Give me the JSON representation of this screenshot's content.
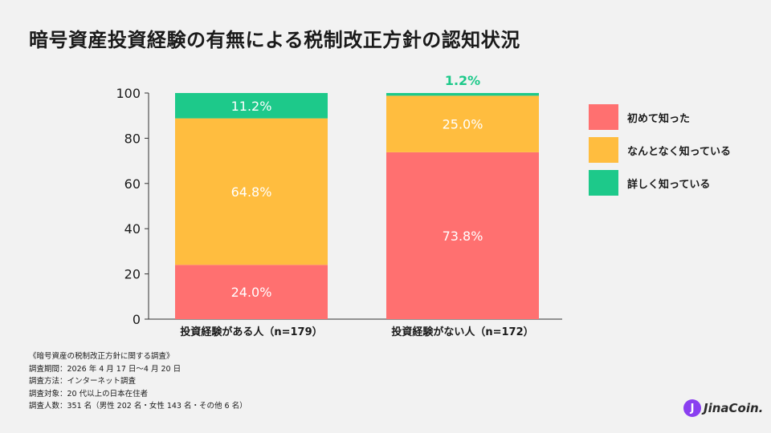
{
  "title": "暗号資産投資経験の有無による税制改正方針の認知状況",
  "chart_data": {
    "type": "bar",
    "stacked": true,
    "categories": [
      "投資経験がある人（n=179）",
      "投資経験がない人（n=172）"
    ],
    "series": [
      {
        "name": "初めて知った",
        "values": [
          24.0,
          73.8
        ],
        "labels": [
          "24.0%",
          "73.8%"
        ],
        "color": "#ff7070"
      },
      {
        "name": "なんとなく知っている",
        "values": [
          64.8,
          25.0
        ],
        "labels": [
          "64.8%",
          "25.0%"
        ],
        "color": "#ffbd3f"
      },
      {
        "name": "詳しく知っている",
        "values": [
          11.2,
          1.2
        ],
        "labels": [
          "11.2%",
          "1.2%"
        ],
        "color": "#1dc98a"
      }
    ],
    "ylim": [
      0,
      100
    ],
    "yticks": [
      0,
      20,
      40,
      60,
      80,
      100
    ],
    "legend": "right"
  },
  "notes": [
    "《暗号資産の税制改正方針に関する調査》",
    "調査期間：2026 年 4 月 17 日〜4 月 20 日",
    "調査方法：インターネット調査",
    "調査対象：20 代以上の日本在住者",
    "調査人数：351 名（男性 202 名・女性 143 名・その他 6 名）"
  ],
  "logo": {
    "mark": "J",
    "text": "JinaCoin."
  }
}
